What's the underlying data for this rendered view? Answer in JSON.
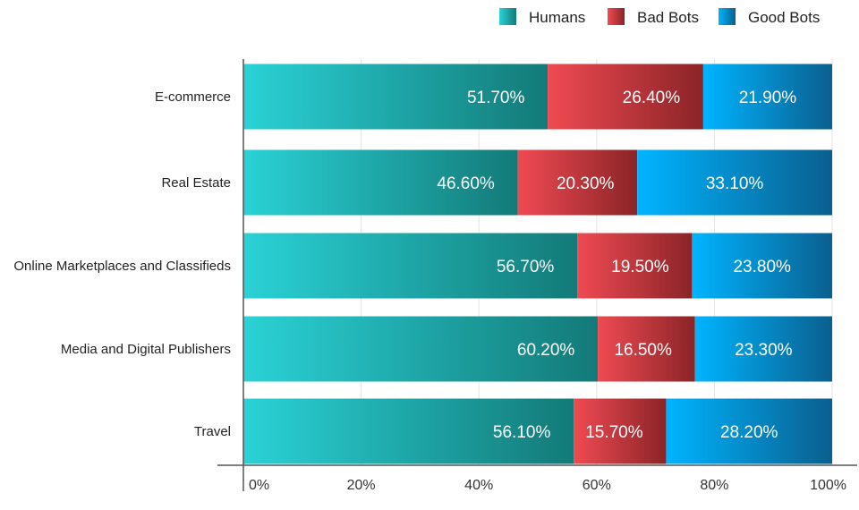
{
  "chart_data": {
    "type": "bar",
    "orientation": "horizontal",
    "stacked": "percent",
    "categories": [
      "E-commerce",
      "Real Estate",
      "Online Marketplaces and Classifieds",
      "Media and Digital Publishers",
      "Travel"
    ],
    "series": [
      {
        "name": "Humans",
        "values": [
          51.7,
          46.6,
          56.7,
          60.2,
          56.1
        ],
        "labels": [
          "51.70%",
          "46.60%",
          "56.70%",
          "60.20%",
          "56.10%"
        ],
        "color_start": "#2ad2d6",
        "color_end": "#137a78"
      },
      {
        "name": "Bad Bots",
        "values": [
          26.4,
          20.3,
          19.5,
          16.5,
          15.7
        ],
        "labels": [
          "26.40%",
          "20.30%",
          "19.50%",
          "16.50%",
          "15.70%"
        ],
        "color_start": "#f04a52",
        "color_end": "#8a2427"
      },
      {
        "name": "Good Bots",
        "values": [
          21.9,
          33.1,
          23.8,
          23.3,
          28.2
        ],
        "labels": [
          "21.90%",
          "33.10%",
          "23.80%",
          "23.30%",
          "28.20%"
        ],
        "color_start": "#00b4ff",
        "color_end": "#0a5f8e"
      }
    ],
    "xticks": [
      "0%",
      "20%",
      "40%",
      "60%",
      "80%",
      "100%"
    ],
    "xlim": [
      0,
      100
    ],
    "grid": true,
    "legend_position": "top-right",
    "title": "",
    "xlabel": "",
    "ylabel": ""
  }
}
